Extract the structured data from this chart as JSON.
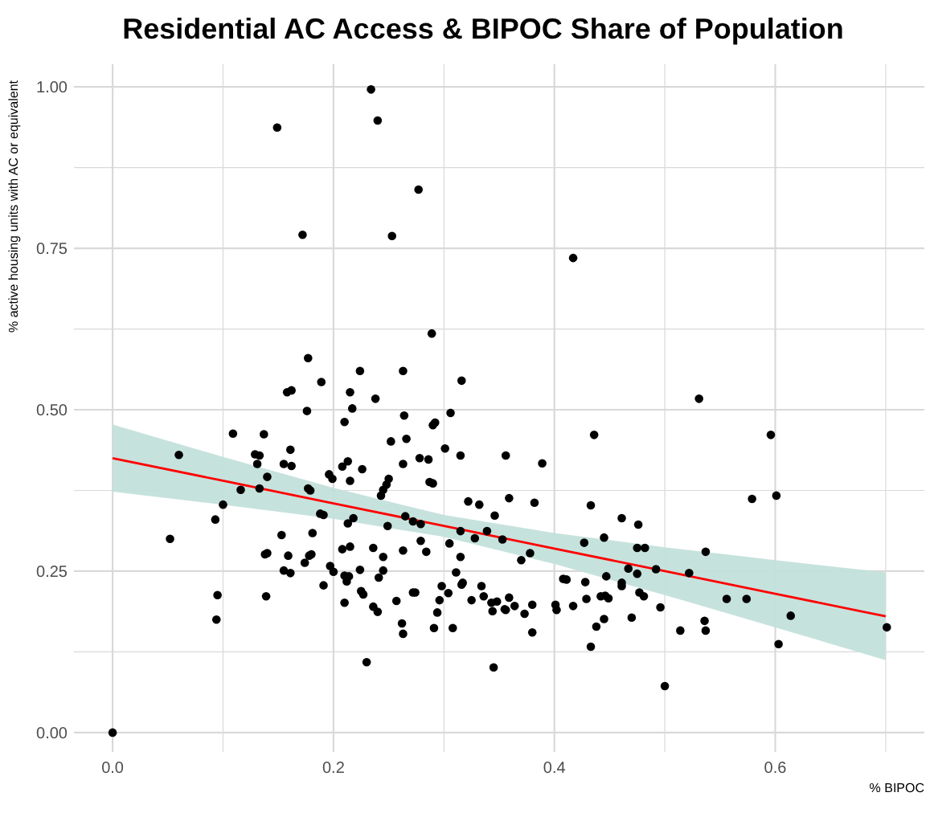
{
  "chart_data": {
    "type": "scatter",
    "title": "Residential AC Access & BIPOC Share of Population",
    "xlabel": "% BIPOC",
    "ylabel": "% active housing units with AC or equivalent",
    "xlim": [
      -0.035,
      0.735
    ],
    "ylim": [
      -0.03,
      1.035
    ],
    "xticks": [
      {
        "value": 0,
        "label": "0.0"
      },
      {
        "value": 0.1,
        "label": null
      },
      0.2,
      {
        "value": 0.3,
        "label": null
      },
      0.4,
      {
        "value": 0.5,
        "label": null
      },
      0.6,
      {
        "value": 0.7,
        "label": null
      }
    ],
    "yticks": [
      {
        "value": 0,
        "label": "0.00"
      },
      {
        "value": 0.125,
        "label": null
      },
      {
        "value": 0.25,
        "label": "0.25"
      },
      {
        "value": 0.375,
        "label": null
      },
      {
        "value": 0.5,
        "label": "0.50"
      },
      {
        "value": 0.625,
        "label": null
      },
      {
        "value": 0.75,
        "label": "0.75"
      },
      {
        "value": 0.875,
        "label": null
      },
      {
        "value": 1,
        "label": "1.00"
      }
    ],
    "grid": true,
    "series": [
      {
        "marker": "circle",
        "color": "#000000",
        "x": [
          0,
          0.052,
          0.06,
          0.234,
          0.24,
          0.149,
          0.277,
          0.172,
          0.253,
          0.289,
          0.177,
          0.224,
          0.263,
          0.189,
          0.316,
          0.158,
          0.162,
          0.215,
          0.238,
          0.217,
          0.176,
          0.264,
          0.306,
          0.21,
          0.29,
          0.292,
          0.109,
          0.137,
          0.252,
          0.266,
          0.301,
          0.161,
          0.129,
          0.133,
          0.315,
          0.356,
          0.278,
          0.286,
          0.213,
          0.208,
          0.131,
          0.155,
          0.162,
          0.263,
          0.226,
          0.196,
          0.199,
          0.14,
          0.215,
          0.287,
          0.29,
          0.25,
          0.248,
          0.245,
          0.243,
          0.116,
          0.133,
          0.177,
          0.179,
          0.1,
          0.322,
          0.332,
          0.359,
          0.188,
          0.191,
          0.265,
          0.093,
          0.213,
          0.218,
          0.346,
          0.272,
          0.279,
          0.249,
          0.315,
          0.328,
          0.339,
          0.181,
          0.153,
          0.279,
          0.284,
          0.305,
          0.353,
          0.208,
          0.215,
          0.236,
          0.263,
          0.245,
          0.315,
          0.138,
          0.14,
          0.159,
          0.178,
          0.18,
          0.174,
          0.197,
          0.2,
          0.155,
          0.161,
          0.224,
          0.245,
          0.241,
          0.214,
          0.212,
          0.21,
          0.191,
          0.311,
          0.298,
          0.304,
          0.317,
          0.316,
          0.334,
          0.272,
          0.274,
          0.257,
          0.225,
          0.227,
          0.296,
          0.325,
          0.336,
          0.343,
          0.348,
          0.359,
          0.355,
          0.139,
          0.095,
          0.094,
          0.21,
          0.236,
          0.24,
          0.294,
          0.344,
          0.262,
          0.263,
          0.291,
          0.308,
          0.23,
          0.345,
          0.417,
          0.531,
          0.436,
          0.596,
          0.389,
          0.601,
          0.579,
          0.382,
          0.433,
          0.461,
          0.476,
          0.445,
          0.427,
          0.475,
          0.482,
          0.537,
          0.37,
          0.378,
          0.467,
          0.475,
          0.492,
          0.522,
          0.447,
          0.408,
          0.411,
          0.428,
          0.461,
          0.461,
          0.477,
          0.481,
          0.442,
          0.446,
          0.449,
          0.429,
          0.556,
          0.574,
          0.364,
          0.401,
          0.402,
          0.417,
          0.38,
          0.356,
          0.373,
          0.496,
          0.614,
          0.445,
          0.47,
          0.438,
          0.536,
          0.537,
          0.514,
          0.38,
          0.701,
          0.433,
          0.603,
          0.5
        ],
        "values": [
          0,
          0.3,
          0.43,
          0.996,
          0.948,
          0.937,
          0.841,
          0.771,
          0.769,
          0.618,
          0.58,
          0.56,
          0.56,
          0.543,
          0.545,
          0.527,
          0.53,
          0.527,
          0.517,
          0.502,
          0.498,
          0.491,
          0.495,
          0.481,
          0.476,
          0.48,
          0.463,
          0.462,
          0.451,
          0.455,
          0.44,
          0.438,
          0.431,
          0.429,
          0.429,
          0.429,
          0.425,
          0.423,
          0.42,
          0.412,
          0.416,
          0.416,
          0.413,
          0.416,
          0.408,
          0.4,
          0.393,
          0.396,
          0.39,
          0.388,
          0.386,
          0.393,
          0.384,
          0.376,
          0.367,
          0.376,
          0.378,
          0.378,
          0.375,
          0.353,
          0.358,
          0.353,
          0.363,
          0.339,
          0.337,
          0.335,
          0.33,
          0.324,
          0.332,
          0.336,
          0.327,
          0.323,
          0.32,
          0.312,
          0.301,
          0.312,
          0.309,
          0.306,
          0.297,
          0.28,
          0.293,
          0.299,
          0.284,
          0.288,
          0.286,
          0.282,
          0.272,
          0.272,
          0.276,
          0.278,
          0.274,
          0.274,
          0.276,
          0.263,
          0.258,
          0.249,
          0.251,
          0.247,
          0.252,
          0.251,
          0.24,
          0.242,
          0.234,
          0.243,
          0.228,
          0.248,
          0.227,
          0.216,
          0.232,
          0.229,
          0.227,
          0.217,
          0.217,
          0.204,
          0.219,
          0.214,
          0.205,
          0.205,
          0.211,
          0.201,
          0.203,
          0.209,
          0.191,
          0.211,
          0.213,
          0.175,
          0.201,
          0.195,
          0.187,
          0.186,
          0.188,
          0.169,
          0.153,
          0.162,
          0.162,
          0.109,
          0.101,
          0.735,
          0.517,
          0.461,
          0.461,
          0.417,
          0.367,
          0.362,
          0.356,
          0.352,
          0.332,
          0.322,
          0.302,
          0.294,
          0.286,
          0.286,
          0.28,
          0.267,
          0.278,
          0.254,
          0.246,
          0.253,
          0.247,
          0.242,
          0.238,
          0.237,
          0.233,
          0.232,
          0.227,
          0.217,
          0.211,
          0.211,
          0.212,
          0.208,
          0.207,
          0.207,
          0.207,
          0.196,
          0.198,
          0.19,
          0.196,
          0.198,
          0.19,
          0.184,
          0.194,
          0.181,
          0.176,
          0.178,
          0.164,
          0.173,
          0.158,
          0.158,
          0.155,
          0.163,
          0.133,
          0.137,
          0.072
        ]
      },
      {
        "type": "line",
        "color": "#ff0000",
        "x": [
          0,
          0.1,
          0.2,
          0.3,
          0.4,
          0.5,
          0.6,
          0.7
        ],
        "values": [
          0.425,
          0.39,
          0.355,
          0.32,
          0.285,
          0.25,
          0.215,
          0.18
        ],
        "lower": [
          0.373,
          0.353,
          0.331,
          0.303,
          0.261,
          0.213,
          0.163,
          0.112
        ],
        "upper": [
          0.477,
          0.427,
          0.379,
          0.337,
          0.309,
          0.287,
          0.267,
          0.248
        ]
      }
    ]
  }
}
